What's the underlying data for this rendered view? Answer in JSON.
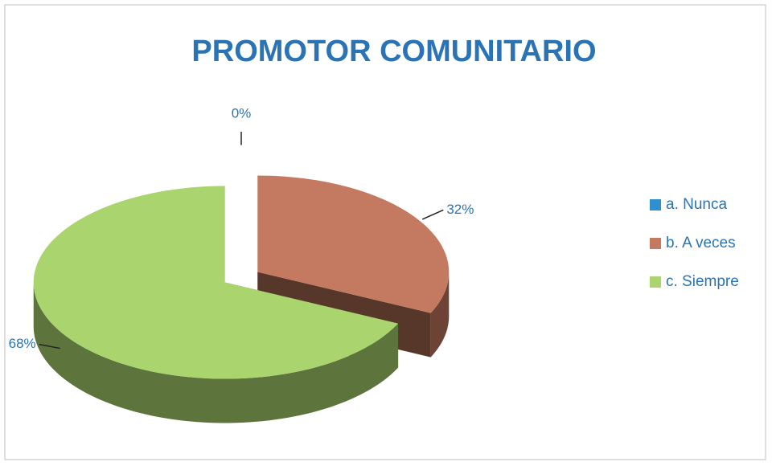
{
  "chart_data": {
    "type": "pie",
    "title": "PROMOTOR COMUNITARIO",
    "categories": [
      "a. Nunca",
      "b. A veces",
      "c. Siempre"
    ],
    "values": [
      0,
      32,
      68
    ],
    "value_labels": [
      "0%",
      "32%",
      "68%"
    ],
    "colors": [
      "#2f8fcf",
      "#c47a60",
      "#a9d46e"
    ],
    "legend": "right"
  }
}
